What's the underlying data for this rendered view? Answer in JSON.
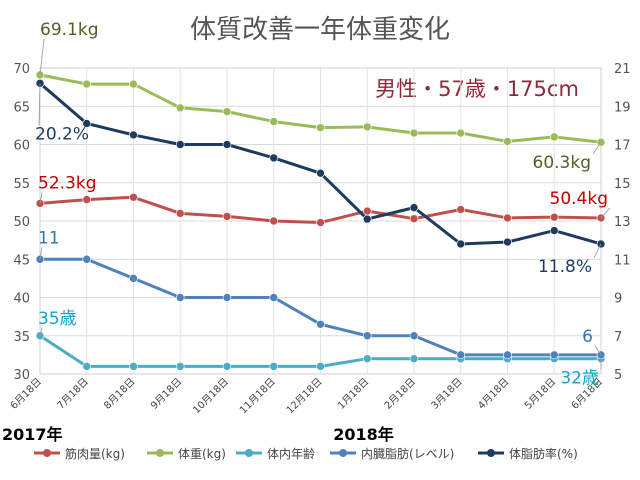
{
  "chart_data": {
    "type": "line",
    "title": "体質改善一年体重変化",
    "subtitle": "男性・57歳・175cm",
    "categories": [
      "6月18日",
      "7月18日",
      "8月18日",
      "9月18日",
      "10月18日",
      "11月18日",
      "12月18日",
      "1月18日",
      "2月18日",
      "3月18日",
      "4月18日",
      "5月18日",
      "6月18日"
    ],
    "year_labels": [
      {
        "text": "2017年",
        "category_index": 0
      },
      {
        "text": "2018年",
        "category_index": 7
      }
    ],
    "y_left": {
      "min": 30,
      "max": 70,
      "ticks": [
        30,
        35,
        40,
        45,
        50,
        55,
        60,
        65,
        70
      ]
    },
    "y_right": {
      "min": 5,
      "max": 21,
      "ticks": [
        5,
        7,
        9,
        11,
        13,
        15,
        17,
        19,
        21
      ]
    },
    "grid": true,
    "legend_position": "bottom",
    "series": [
      {
        "name": "筋肉量(kg)",
        "axis": "left",
        "color": "#c0504d",
        "values": [
          52.3,
          52.8,
          53.1,
          51.0,
          50.6,
          50.0,
          49.8,
          51.3,
          50.3,
          51.5,
          50.4,
          50.5,
          50.4
        ]
      },
      {
        "name": "体重(kg)",
        "axis": "left",
        "color": "#9bbb59",
        "values": [
          69.1,
          67.9,
          67.9,
          64.8,
          64.3,
          63.0,
          62.2,
          62.3,
          61.5,
          61.5,
          60.4,
          61.0,
          60.3
        ]
      },
      {
        "name": "体内年齢",
        "axis": "left",
        "color": "#4bacc6",
        "values": [
          35,
          31,
          31,
          31,
          31,
          31,
          31,
          32,
          32,
          32,
          32,
          32,
          32
        ]
      },
      {
        "name": "内臓脂肪(レベル)",
        "axis": "right",
        "color": "#4f81bd",
        "values": [
          11,
          11,
          10,
          9,
          9,
          9,
          7.6,
          7,
          7,
          6,
          6,
          6,
          6
        ]
      },
      {
        "name": "体脂肪率(%)",
        "axis": "right",
        "color": "#1f3a5f",
        "values": [
          20.2,
          18.1,
          17.5,
          17,
          17,
          16.3,
          15.5,
          13.1,
          13.7,
          11.8,
          11.9,
          12.5,
          11.8
        ]
      }
    ],
    "annotations": [
      {
        "text": "69.1kg",
        "color": "#4f6228",
        "series": 1,
        "point": 0
      },
      {
        "text": "60.3kg",
        "color": "#4f6228",
        "series": 1,
        "point": 12
      },
      {
        "text": "52.3kg",
        "color": "#c00000",
        "series": 0,
        "point": 0
      },
      {
        "text": "50.4kg",
        "color": "#c00000",
        "series": 0,
        "point": 12
      },
      {
        "text": "20.2%",
        "color": "#1f3a5f",
        "series": 4,
        "point": 0
      },
      {
        "text": "11.8%",
        "color": "#1f3a5f",
        "series": 4,
        "point": 12
      },
      {
        "text": "11",
        "color": "#2e75b6",
        "series": 3,
        "point": 0
      },
      {
        "text": "6",
        "color": "#2e75b6",
        "series": 3,
        "point": 12
      },
      {
        "text": "35歳",
        "color": "#17a2c8",
        "series": 2,
        "point": 0
      },
      {
        "text": "32歳",
        "color": "#17a2c8",
        "series": 2,
        "point": 12
      }
    ]
  }
}
